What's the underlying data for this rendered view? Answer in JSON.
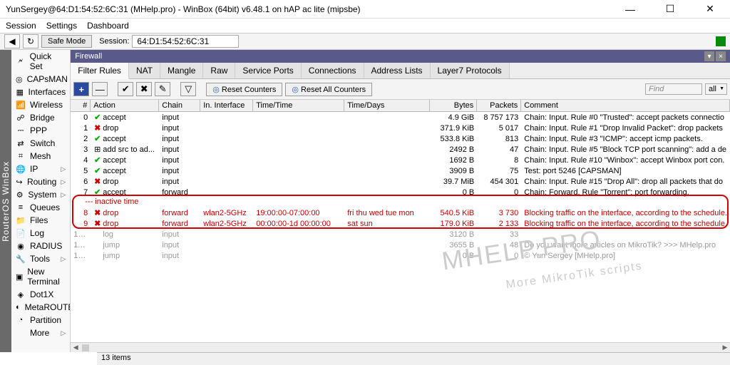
{
  "window": {
    "title": "YunSergey@64:D1:54:52:6C:31 (MHelp.pro) - WinBox (64bit) v6.48.1 on hAP ac lite (mipsbe)"
  },
  "menubar": [
    "Session",
    "Settings",
    "Dashboard"
  ],
  "toolbar": {
    "safemode": "Safe Mode",
    "session_label": "Session:",
    "session_value": "64:D1:54:52:6C:31"
  },
  "vtab": "RouterOS WinBox",
  "sidebar": [
    {
      "icon": "🗲",
      "label": "Quick Set",
      "arrow": false
    },
    {
      "icon": "◎",
      "label": "CAPsMAN",
      "arrow": false
    },
    {
      "icon": "▦",
      "label": "Interfaces",
      "arrow": false
    },
    {
      "icon": "📶",
      "label": "Wireless",
      "arrow": false
    },
    {
      "icon": "☍",
      "label": "Bridge",
      "arrow": false
    },
    {
      "icon": "⎓",
      "label": "PPP",
      "arrow": false
    },
    {
      "icon": "⇄",
      "label": "Switch",
      "arrow": false
    },
    {
      "icon": "⌗",
      "label": "Mesh",
      "arrow": false
    },
    {
      "icon": "🌐",
      "label": "IP",
      "arrow": true
    },
    {
      "icon": "↪",
      "label": "Routing",
      "arrow": true
    },
    {
      "icon": "⚙",
      "label": "System",
      "arrow": true
    },
    {
      "icon": "≡",
      "label": "Queues",
      "arrow": false
    },
    {
      "icon": "📁",
      "label": "Files",
      "arrow": false
    },
    {
      "icon": "📄",
      "label": "Log",
      "arrow": false
    },
    {
      "icon": "◉",
      "label": "RADIUS",
      "arrow": false
    },
    {
      "icon": "🔧",
      "label": "Tools",
      "arrow": true
    },
    {
      "icon": "▣",
      "label": "New Terminal",
      "arrow": false
    },
    {
      "icon": "◈",
      "label": "Dot1X",
      "arrow": false
    },
    {
      "icon": "◐",
      "label": "MetaROUTER",
      "arrow": false
    },
    {
      "icon": "◔",
      "label": "Partition",
      "arrow": false
    },
    {
      "icon": "",
      "label": "More",
      "arrow": true
    }
  ],
  "panel": {
    "title": "Firewall",
    "tabs": [
      "Filter Rules",
      "NAT",
      "Mangle",
      "Raw",
      "Service Ports",
      "Connections",
      "Address Lists",
      "Layer7 Protocols"
    ],
    "active_tab": 0,
    "reset_counters": "Reset Counters",
    "reset_all": "Reset All Counters",
    "find_placeholder": "Find",
    "all_label": "all"
  },
  "columns": [
    "#",
    "Action",
    "Chain",
    "In. Interface",
    "Time/Time",
    "Time/Days",
    "Bytes",
    "Packets",
    "Comment"
  ],
  "section_label": "--- inactive time",
  "rows": [
    {
      "n": "0",
      "icon": "✔",
      "iclass": "ai-accept",
      "action": "accept",
      "chain": "input",
      "iface": "",
      "time": "",
      "days": "",
      "bytes": "4.9 GiB",
      "packets": "8 757 173",
      "comment": "Chain: Input. Rule #0 \"Trusted\": accept packets connectio",
      "style": ""
    },
    {
      "n": "1",
      "icon": "✖",
      "iclass": "ai-drop",
      "action": "drop",
      "chain": "input",
      "iface": "",
      "time": "",
      "days": "",
      "bytes": "371.9 KiB",
      "packets": "5 017",
      "comment": "Chain: Input. Rule #1 \"Drop Invalid Packet\": drop packets",
      "style": ""
    },
    {
      "n": "2",
      "icon": "✔",
      "iclass": "ai-accept",
      "action": "accept",
      "chain": "input",
      "iface": "",
      "time": "",
      "days": "",
      "bytes": "533.8 KiB",
      "packets": "813",
      "comment": "Chain: Input. Rule #3 \"ICMP\": accept icmp packets.",
      "style": ""
    },
    {
      "n": "3",
      "icon": "⊞",
      "iclass": "",
      "action": "add src to ad...",
      "chain": "input",
      "iface": "",
      "time": "",
      "days": "",
      "bytes": "2492 B",
      "packets": "47",
      "comment": "Chain: Input. Rule #5 \"Block TCP port scanning\": add a de",
      "style": ""
    },
    {
      "n": "4",
      "icon": "✔",
      "iclass": "ai-accept",
      "action": "accept",
      "chain": "input",
      "iface": "",
      "time": "",
      "days": "",
      "bytes": "1692 B",
      "packets": "8",
      "comment": "Chain: Input. Rule #10 \"Winbox\": accept Winbox port con.",
      "style": ""
    },
    {
      "n": "5",
      "icon": "✔",
      "iclass": "ai-accept",
      "action": "accept",
      "chain": "input",
      "iface": "",
      "time": "",
      "days": "",
      "bytes": "3909 B",
      "packets": "75",
      "comment": "Test: port 5246 [CAPSMAN]",
      "style": ""
    },
    {
      "n": "6",
      "icon": "✖",
      "iclass": "ai-drop",
      "action": "drop",
      "chain": "input",
      "iface": "",
      "time": "",
      "days": "",
      "bytes": "39.7 MiB",
      "packets": "454 301",
      "comment": "Chain: Input. Rule #15 \"Drop All\": drop all packets that do",
      "style": ""
    },
    {
      "n": "7",
      "icon": "✔",
      "iclass": "ai-accept",
      "action": "accept",
      "chain": "forward",
      "iface": "",
      "time": "",
      "days": "",
      "bytes": "0 B",
      "packets": "0",
      "comment": "Chain: Forward. Rule \"Torrent\": port forwarding.",
      "style": ""
    },
    {
      "n": "8",
      "icon": "✖",
      "iclass": "ai-drop",
      "action": "drop",
      "chain": "forward",
      "iface": "wlan2-5GHz",
      "time": "19:00:00-07:00:00",
      "days": "fri thu wed tue mon",
      "bytes": "540.5 KiB",
      "packets": "3 730",
      "comment": "Blocking traffic on the interface, according to the schedule.",
      "style": "red"
    },
    {
      "n": "9",
      "icon": "✖",
      "iclass": "ai-drop",
      "action": "drop",
      "chain": "forward",
      "iface": "wlan2-5GHz",
      "time": "00:00:00-1d 00:00:00",
      "days": "sat sun",
      "bytes": "179.0 KiB",
      "packets": "2 133",
      "comment": "Blocking traffic on the interface, according to the schedule.",
      "style": "red"
    },
    {
      "n": "10 X",
      "icon": "",
      "iclass": "",
      "action": "log",
      "chain": "input",
      "iface": "",
      "time": "",
      "days": "",
      "bytes": "3120 B",
      "packets": "33",
      "comment": "",
      "style": "gray"
    },
    {
      "n": "11 X",
      "icon": "",
      "iclass": "",
      "action": "jump",
      "chain": "input",
      "iface": "",
      "time": "",
      "days": "",
      "bytes": "3655 B",
      "packets": "48",
      "comment": "Do you want more articles on MikroTik? >>> MHelp.pro",
      "style": "gray"
    },
    {
      "n": "12 X",
      "icon": "",
      "iclass": "",
      "action": "jump",
      "chain": "input",
      "iface": "",
      "time": "",
      "days": "",
      "bytes": "0 B",
      "packets": "0",
      "comment": "© Yun Sergey [MHelp.pro]",
      "style": "gray"
    }
  ],
  "status": "13 items",
  "watermark": {
    "main": "MHELP.PRO",
    "sub": "More MikroTik scripts"
  }
}
